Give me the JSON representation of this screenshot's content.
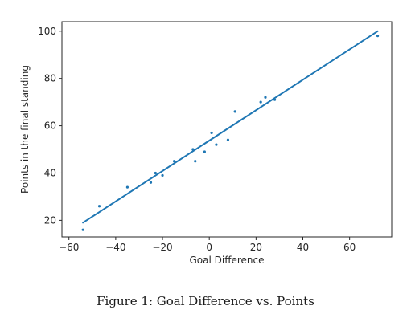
{
  "chart_data": {
    "type": "scatter",
    "xlabel": "Goal Difference",
    "ylabel": "Points in the final standing",
    "xlim": [
      -63,
      78
    ],
    "ylim": [
      13,
      104
    ],
    "xticks": [
      -60,
      -40,
      -20,
      0,
      20,
      40,
      60
    ],
    "yticks": [
      20,
      40,
      60,
      80,
      100
    ],
    "xtick_labels": [
      "−60",
      "−40",
      "−20",
      "0",
      "20",
      "40",
      "60"
    ],
    "ytick_labels": [
      "20",
      "40",
      "60",
      "80",
      "100"
    ],
    "grid": false,
    "legend": "none",
    "point_color": "#1f77b4",
    "line_color": "#1f77b4",
    "points": [
      {
        "x": -54,
        "y": 16
      },
      {
        "x": -47,
        "y": 26
      },
      {
        "x": -35,
        "y": 34
      },
      {
        "x": -25,
        "y": 36
      },
      {
        "x": -23,
        "y": 40
      },
      {
        "x": -20,
        "y": 39
      },
      {
        "x": -15,
        "y": 45
      },
      {
        "x": -7,
        "y": 50
      },
      {
        "x": -6,
        "y": 45
      },
      {
        "x": -2,
        "y": 49
      },
      {
        "x": 1,
        "y": 57
      },
      {
        "x": 3,
        "y": 52
      },
      {
        "x": 8,
        "y": 54
      },
      {
        "x": 11,
        "y": 66
      },
      {
        "x": 22,
        "y": 70
      },
      {
        "x": 24,
        "y": 72
      },
      {
        "x": 28,
        "y": 71
      },
      {
        "x": 72,
        "y": 98
      }
    ],
    "fit_line": {
      "x": [
        -54,
        72
      ],
      "y": [
        19,
        100
      ]
    }
  },
  "caption": "Figure 1: Goal Difference vs. Points"
}
